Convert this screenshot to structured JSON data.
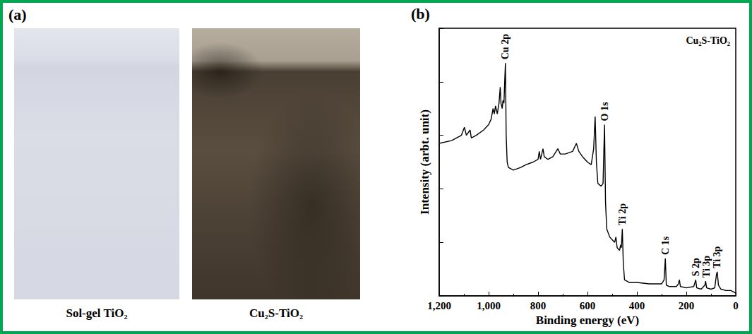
{
  "panel_a": {
    "letter": "(a)",
    "photos": [
      {
        "label": "Sol-gel TiO₂"
      },
      {
        "label": "Cu₂S-TiO₂"
      }
    ]
  },
  "chart_data": {
    "letter": "(b)",
    "type": "line",
    "title": "Cu₂S-TiO₂",
    "x_label": "Binding energy (eV)",
    "y_label": "Intensity (arbt. unit)",
    "color": "#000000",
    "x": [
      1200,
      1150,
      1110,
      1098,
      1090,
      1075,
      1070,
      1050,
      1020,
      1000,
      990,
      982,
      977,
      972,
      965,
      958,
      953,
      950,
      945,
      942,
      938,
      935,
      932,
      929,
      925,
      920,
      900,
      870,
      850,
      820,
      800,
      795,
      790,
      780,
      775,
      760,
      740,
      720,
      710,
      690,
      660,
      645,
      635,
      620,
      600,
      585,
      575,
      569,
      564,
      558,
      545,
      537,
      531,
      527,
      522,
      510,
      500,
      490,
      485,
      480,
      470,
      466,
      463,
      459,
      455,
      450,
      430,
      400,
      350,
      300,
      290,
      285,
      281,
      270,
      240,
      232,
      228,
      224,
      200,
      170,
      165,
      162,
      158,
      140,
      125,
      122,
      118,
      100,
      85,
      78,
      75,
      70,
      60,
      40,
      20,
      0
    ],
    "values": [
      57,
      58,
      60,
      63,
      60,
      62,
      59,
      60,
      62,
      64,
      66,
      70,
      68,
      71,
      68,
      72,
      78,
      72,
      70,
      73,
      72,
      80,
      87,
      60,
      50,
      48,
      47,
      48,
      49,
      50,
      51,
      54,
      51,
      55,
      52,
      51,
      52,
      55,
      53,
      53,
      54,
      57,
      54,
      52,
      50,
      49,
      55,
      67,
      50,
      42,
      41,
      42,
      64,
      35,
      25,
      22,
      21,
      20,
      22,
      18,
      17,
      19,
      18,
      25,
      12,
      6,
      5,
      5,
      4.5,
      4.5,
      6,
      14,
      4,
      3.5,
      3.5,
      4.5,
      6,
      3.5,
      3,
      3.5,
      5,
      6,
      3,
      2.5,
      4,
      5.5,
      3,
      2.5,
      3,
      8,
      9,
      4,
      2.5,
      2,
      2,
      1
    ],
    "xlim": [
      1200,
      0
    ],
    "xticks": [
      0,
      200,
      400,
      600,
      800,
      1000,
      1200
    ],
    "ylim": [
      0,
      100
    ],
    "yticks": [
      0,
      20,
      40,
      60,
      80,
      100
    ],
    "tick_labels": "x",
    "grid": false,
    "annotations": [
      {
        "text": "Cu 2p",
        "x": 932
      },
      {
        "text": "O 1s",
        "x": 531
      },
      {
        "text": "Ti 2p",
        "x": 459
      },
      {
        "text": "C 1s",
        "x": 285
      },
      {
        "text": "S 2p",
        "x": 162
      },
      {
        "text": "Ti 3p",
        "x": 122
      },
      {
        "text": "Ti 3p",
        "x": 75
      }
    ]
  }
}
